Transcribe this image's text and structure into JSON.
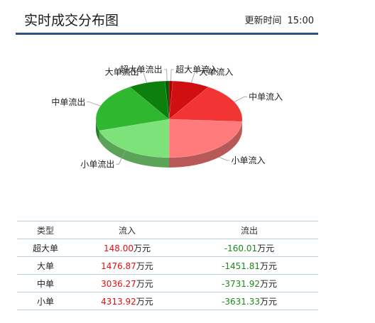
{
  "header": {
    "title": "实时成交分布图",
    "update_label": "更新时间",
    "update_time": "15:00"
  },
  "table": {
    "headers": [
      "类型",
      "流入",
      "流出"
    ],
    "unit": "万元",
    "rows": [
      {
        "type": "超大单",
        "inflow": "148.00",
        "outflow": "-160.01"
      },
      {
        "type": "大单",
        "inflow": "1476.87",
        "outflow": "-1451.81"
      },
      {
        "type": "中单",
        "inflow": "3036.27",
        "outflow": "-3731.92"
      },
      {
        "type": "小单",
        "inflow": "4313.92",
        "outflow": "-3631.33"
      }
    ]
  },
  "chart_data": {
    "type": "pie",
    "style": "3d",
    "slices": [
      {
        "label": "超大单流入",
        "value": 148.0,
        "color": "#a80000"
      },
      {
        "label": "大单流入",
        "value": 1476.87,
        "color": "#d01010"
      },
      {
        "label": "中单流入",
        "value": 3036.27,
        "color": "#f23434"
      },
      {
        "label": "小单流入",
        "value": 4313.92,
        "color": "#ff7b7b"
      },
      {
        "label": "小单流出",
        "value": 3631.33,
        "color": "#7ee27a"
      },
      {
        "label": "中单流出",
        "value": 3731.92,
        "color": "#2fb82f"
      },
      {
        "label": "大单流出",
        "value": 1451.81,
        "color": "#0c7f0c"
      },
      {
        "label": "超大单流出",
        "value": 160.01,
        "color": "#045c04"
      }
    ]
  }
}
